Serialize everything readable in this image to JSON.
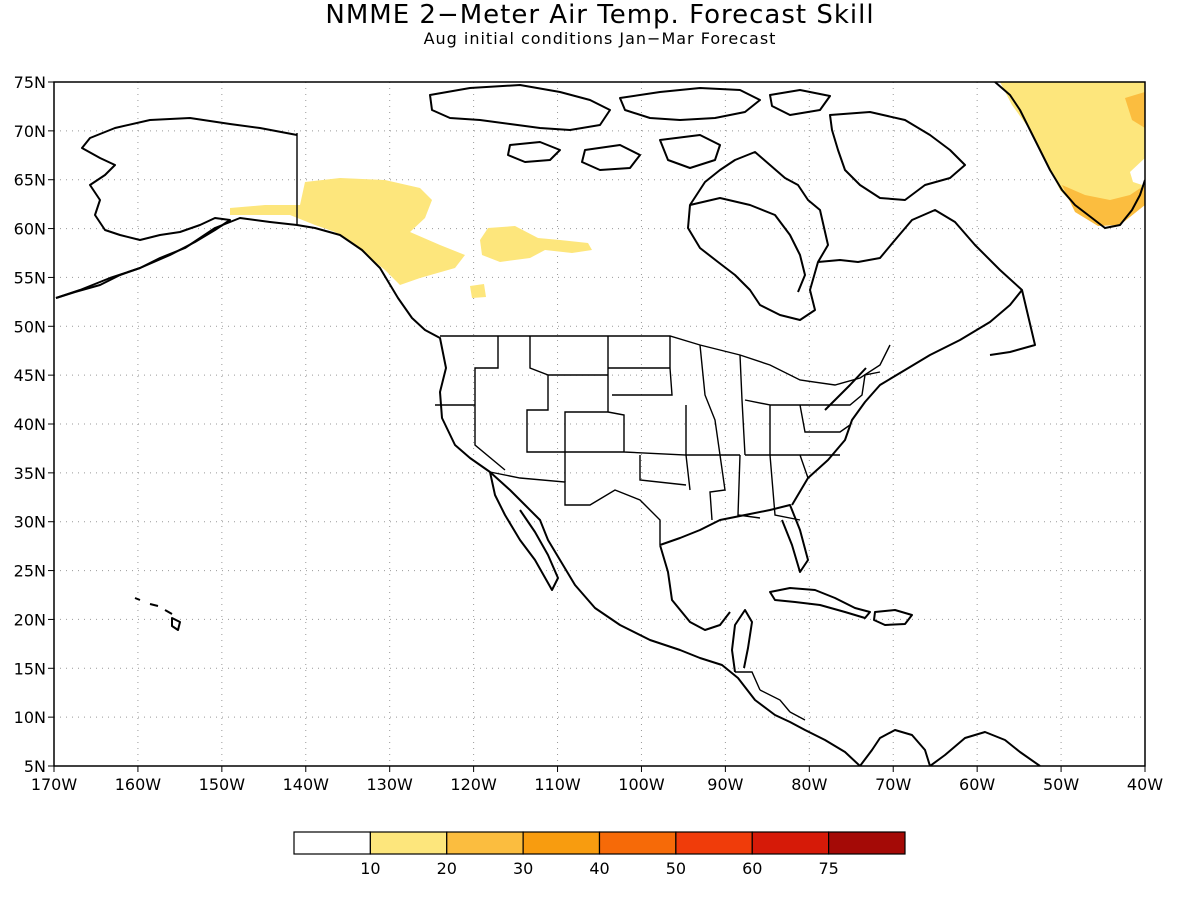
{
  "header": {
    "title": "NMME 2−Meter Air Temp. Forecast Skill",
    "subtitle": "Aug initial conditions  Jan−Mar Forecast"
  },
  "map": {
    "lon_range": [
      -170,
      -40
    ],
    "lat_range": [
      5,
      75
    ],
    "x_ticks": [
      "170W",
      "160W",
      "150W",
      "140W",
      "130W",
      "120W",
      "110W",
      "100W",
      "90W",
      "80W",
      "70W",
      "60W",
      "50W",
      "40W"
    ],
    "y_ticks": [
      "75N",
      "70N",
      "65N",
      "60N",
      "55N",
      "50N",
      "45N",
      "40N",
      "35N",
      "30N",
      "25N",
      "20N",
      "15N",
      "10N",
      "5N"
    ]
  },
  "colorbar": {
    "labels": [
      "10",
      "20",
      "30",
      "40",
      "50",
      "60",
      "75"
    ],
    "colors": [
      "#ffffff",
      "#fde67c",
      "#fbbd3f",
      "#f89c0f",
      "#f66a08",
      "#f03c0a",
      "#d61a08",
      "#a40a06"
    ]
  },
  "skill_regions": [
    {
      "name": "alaska-yukon",
      "color": "#fde67c"
    },
    {
      "name": "northern-canada",
      "color": "#fde67c"
    },
    {
      "name": "greenland-east",
      "color": "#fde67c"
    },
    {
      "name": "greenland-south",
      "color": "#fbbd3f"
    }
  ]
}
